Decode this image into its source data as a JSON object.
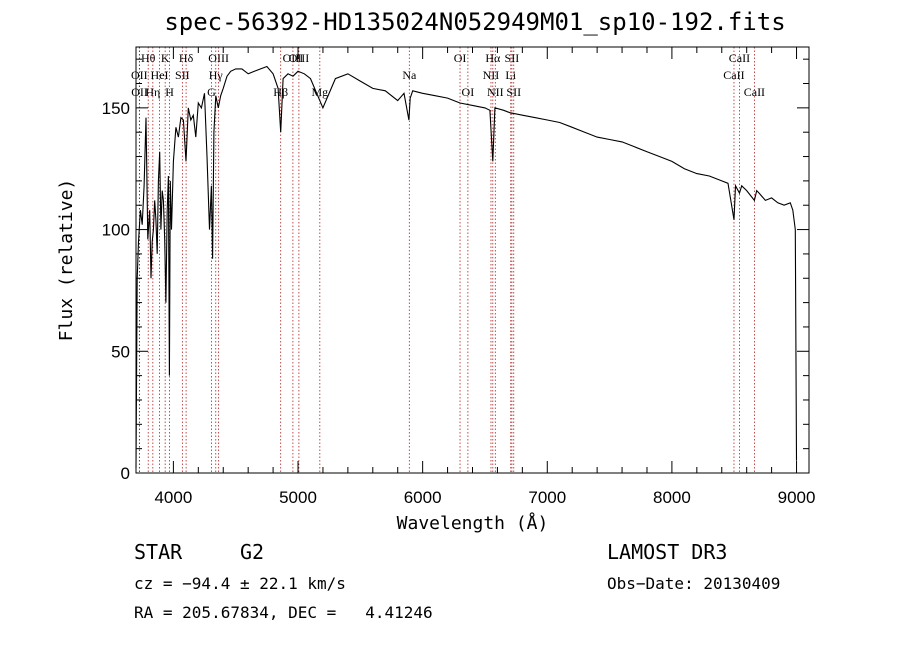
{
  "chart_data": {
    "type": "line",
    "title": "spec-56392-HD135024N052949M01_sp10-192.fits",
    "xlabel": "Wavelength (Å)",
    "ylabel": "Flux (relative)",
    "xlim": [
      3700,
      9100
    ],
    "ylim": [
      0,
      175
    ],
    "xticks": [
      4000,
      5000,
      6000,
      7000,
      8000,
      9000
    ],
    "yticks": [
      0,
      50,
      100,
      150
    ],
    "series": [
      {
        "name": "flux",
        "x": [
          3700,
          3710,
          3720,
          3735,
          3750,
          3765,
          3780,
          3795,
          3810,
          3820,
          3830,
          3840,
          3850,
          3860,
          3870,
          3880,
          3890,
          3900,
          3910,
          3920,
          3930,
          3940,
          3950,
          3960,
          3968,
          3975,
          3985,
          4000,
          4020,
          4040,
          4060,
          4080,
          4101,
          4120,
          4140,
          4160,
          4180,
          4200,
          4225,
          4250,
          4270,
          4290,
          4305,
          4315,
          4325,
          4340,
          4360,
          4380,
          4400,
          4430,
          4460,
          4500,
          4550,
          4600,
          4650,
          4700,
          4750,
          4800,
          4840,
          4861,
          4880,
          4920,
          4960,
          5000,
          5050,
          5100,
          5150,
          5200,
          5300,
          5400,
          5500,
          5600,
          5700,
          5800,
          5850,
          5890,
          5900,
          5920,
          6000,
          6100,
          6200,
          6300,
          6400,
          6500,
          6540,
          6563,
          6580,
          6650,
          6700,
          6800,
          6900,
          7000,
          7100,
          7200,
          7300,
          7400,
          7500,
          7600,
          7700,
          7800,
          7900,
          8000,
          8100,
          8200,
          8300,
          8400,
          8450,
          8498,
          8510,
          8542,
          8560,
          8600,
          8662,
          8680,
          8700,
          8750,
          8800,
          8850,
          8900,
          8950,
          8970,
          8990,
          9000
        ],
        "y": [
          2,
          80,
          95,
          108,
          102,
          118,
          146,
          96,
          108,
          80,
          95,
          100,
          112,
          104,
          90,
          120,
          132,
          100,
          116,
          112,
          96,
          70,
          108,
          122,
          40,
          120,
          100,
          128,
          142,
          138,
          146,
          145,
          128,
          150,
          145,
          147,
          138,
          152,
          150,
          156,
          130,
          100,
          118,
          88,
          140,
          155,
          150,
          155,
          158,
          163,
          165,
          166,
          166,
          164,
          165,
          166,
          167,
          164,
          158,
          140,
          162,
          164,
          163,
          165,
          164,
          162,
          156,
          150,
          162,
          164,
          161,
          158,
          157,
          153,
          156,
          145,
          154,
          157,
          156,
          155,
          154,
          152,
          151,
          150,
          149,
          128,
          150,
          149,
          148,
          147,
          146,
          145,
          144,
          142,
          140,
          138,
          137,
          136,
          134,
          132,
          130,
          128,
          125,
          123,
          122,
          120,
          119,
          104,
          118,
          115,
          118,
          116,
          112,
          116,
          115,
          112,
          113,
          111,
          110,
          111,
          108,
          100,
          5
        ]
      }
    ],
    "line_markers": [
      {
        "name": "OII",
        "x": 3727,
        "row": 2
      },
      {
        "name": "OII",
        "x": 3729,
        "row": 3
      },
      {
        "name": "Hθ",
        "x": 3798,
        "row": 1
      },
      {
        "name": "Hη",
        "x": 3835,
        "row": 3
      },
      {
        "name": "HeI",
        "x": 3889,
        "row": 2
      },
      {
        "name": "K",
        "x": 3934,
        "row": 1
      },
      {
        "name": "H",
        "x": 3969,
        "row": 3
      },
      {
        "name": "SII",
        "x": 4072,
        "row": 2
      },
      {
        "name": "Hδ",
        "x": 4102,
        "row": 1
      },
      {
        "name": "Hγ",
        "x": 4340,
        "row": 2
      },
      {
        "name": "G",
        "x": 4305,
        "row": 3
      },
      {
        "name": "OIII",
        "x": 4363,
        "row": 1
      },
      {
        "name": "Hβ",
        "x": 4861,
        "row": 3
      },
      {
        "name": "OIII",
        "x": 4959,
        "row": 1
      },
      {
        "name": "OIII",
        "x": 5007,
        "row": 1
      },
      {
        "name": "Mg",
        "x": 5175,
        "row": 3
      },
      {
        "name": "Na",
        "x": 5893,
        "row": 2
      },
      {
        "name": "OI",
        "x": 6300,
        "row": 1
      },
      {
        "name": "OI",
        "x": 6363,
        "row": 3
      },
      {
        "name": "NII",
        "x": 6548,
        "row": 2
      },
      {
        "name": "Hα",
        "x": 6563,
        "row": 1
      },
      {
        "name": "NII",
        "x": 6583,
        "row": 3
      },
      {
        "name": "Li",
        "x": 6707,
        "row": 2
      },
      {
        "name": "SII",
        "x": 6716,
        "row": 1
      },
      {
        "name": "SII",
        "x": 6731,
        "row": 3
      },
      {
        "name": "CaII",
        "x": 8498,
        "row": 2
      },
      {
        "name": "CaII",
        "x": 8542,
        "row": 1
      },
      {
        "name": "CaII",
        "x": 8662,
        "row": 3
      }
    ]
  },
  "info": {
    "class_label": "STAR",
    "subclass": "G2",
    "survey": "LAMOST DR3",
    "cz": "cz = −94.4 ± 22.1 km/s",
    "obs_date": "Obs−Date: 20130409",
    "coords": "RA = 205.67834, DEC =   4.41246"
  }
}
